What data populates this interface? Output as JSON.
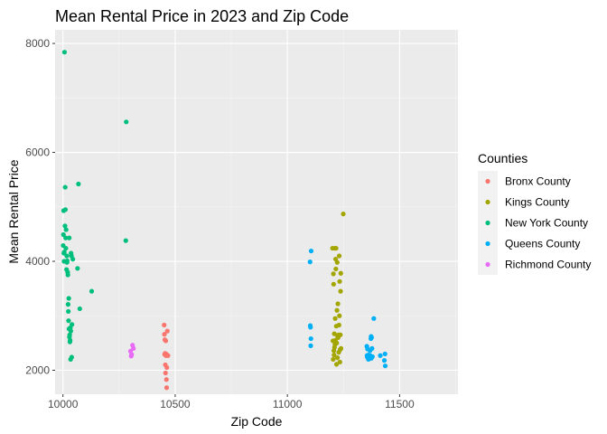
{
  "chart_data": {
    "type": "scatter",
    "title": "Mean Rental Price in 2023 and Zip Code",
    "xlabel": "Zip Code",
    "ylabel": "Mean Rental Price",
    "xlim": [
      9965,
      11760
    ],
    "ylim": [
      1560,
      8250
    ],
    "x_ticks": [
      10000,
      10500,
      11000,
      11500
    ],
    "y_ticks": [
      2000,
      4000,
      6000,
      8000
    ],
    "grid": true,
    "legend": {
      "title": "Counties",
      "position": "right"
    },
    "series": [
      {
        "name": "Bronx County",
        "color": "#F8766D",
        "points": [
          [
            10451,
            2830
          ],
          [
            10452,
            2660
          ],
          [
            10453,
            2290
          ],
          [
            10454,
            2560
          ],
          [
            10455,
            2310
          ],
          [
            10456,
            2100
          ],
          [
            10457,
            1950
          ],
          [
            10458,
            2540
          ],
          [
            10459,
            2270
          ],
          [
            10460,
            2300
          ],
          [
            10461,
            1830
          ],
          [
            10462,
            1680
          ],
          [
            10463,
            2050
          ],
          [
            10465,
            2720
          ],
          [
            10468,
            2270
          ]
        ]
      },
      {
        "name": "Kings County",
        "color": "#A3A500",
        "points": [
          [
            11201,
            4240
          ],
          [
            11203,
            2540
          ],
          [
            11204,
            2200
          ],
          [
            11205,
            3770
          ],
          [
            11206,
            3580
          ],
          [
            11207,
            2360
          ],
          [
            11208,
            2280
          ],
          [
            11209,
            2670
          ],
          [
            11210,
            2420
          ],
          [
            11211,
            4240
          ],
          [
            11212,
            2470
          ],
          [
            11213,
            2950
          ],
          [
            11214,
            2550
          ],
          [
            11215,
            4040
          ],
          [
            11216,
            3860
          ],
          [
            11217,
            4240
          ],
          [
            11218,
            2810
          ],
          [
            11219,
            2110
          ],
          [
            11220,
            2500
          ],
          [
            11221,
            3100
          ],
          [
            11222,
            3980
          ],
          [
            11223,
            2230
          ],
          [
            11224,
            2620
          ],
          [
            11225,
            3220
          ],
          [
            11226,
            2600
          ],
          [
            11228,
            2650
          ],
          [
            11229,
            2330
          ],
          [
            11230,
            2830
          ],
          [
            11231,
            4100
          ],
          [
            11232,
            3000
          ],
          [
            11233,
            3630
          ],
          [
            11234,
            2150
          ],
          [
            11235,
            2380
          ],
          [
            11236,
            2650
          ],
          [
            11237,
            3450
          ],
          [
            11238,
            3780
          ],
          [
            11239,
            2400
          ],
          [
            11249,
            4870
          ]
        ]
      },
      {
        "name": "New York County",
        "color": "#00BF7D",
        "points": [
          [
            10001,
            4290
          ],
          [
            10002,
            4490
          ],
          [
            10003,
            4930
          ],
          [
            10004,
            4150
          ],
          [
            10005,
            4000
          ],
          [
            10006,
            4170
          ],
          [
            10007,
            7840
          ],
          [
            10009,
            4650
          ],
          [
            10010,
            5360
          ],
          [
            10011,
            4950
          ],
          [
            10012,
            4430
          ],
          [
            10013,
            4240
          ],
          [
            10014,
            4580
          ],
          [
            10016,
            3850
          ],
          [
            10017,
            4100
          ],
          [
            10018,
            3980
          ],
          [
            10019,
            4010
          ],
          [
            10021,
            3800
          ],
          [
            10022,
            3750
          ],
          [
            10023,
            3210
          ],
          [
            10024,
            3080
          ],
          [
            10025,
            2910
          ],
          [
            10026,
            3320
          ],
          [
            10027,
            2760
          ],
          [
            10028,
            4430
          ],
          [
            10029,
            2610
          ],
          [
            10030,
            2650
          ],
          [
            10031,
            2520
          ],
          [
            10032,
            2550
          ],
          [
            10033,
            2780
          ],
          [
            10034,
            2200
          ],
          [
            10035,
            2720
          ],
          [
            10036,
            4150
          ],
          [
            10038,
            4100
          ],
          [
            10039,
            2240
          ],
          [
            10040,
            2840
          ],
          [
            10044,
            4040
          ],
          [
            10065,
            3870
          ],
          [
            10069,
            5420
          ],
          [
            10075,
            3130
          ],
          [
            10128,
            3450
          ],
          [
            10280,
            4380
          ],
          [
            10282,
            6560
          ]
        ]
      },
      {
        "name": "Queens County",
        "color": "#00B0F6",
        "points": [
          [
            11101,
            3990
          ],
          [
            11102,
            2820
          ],
          [
            11103,
            2790
          ],
          [
            11104,
            2450
          ],
          [
            11105,
            2580
          ],
          [
            11106,
            4190
          ],
          [
            11354,
            2440
          ],
          [
            11355,
            2270
          ],
          [
            11356,
            2240
          ],
          [
            11357,
            2390
          ],
          [
            11358,
            2260
          ],
          [
            11360,
            2280
          ],
          [
            11361,
            2200
          ],
          [
            11362,
            2240
          ],
          [
            11364,
            2270
          ],
          [
            11365,
            2210
          ],
          [
            11366,
            2230
          ],
          [
            11367,
            2220
          ],
          [
            11368,
            2360
          ],
          [
            11369,
            2270
          ],
          [
            11372,
            2580
          ],
          [
            11373,
            2620
          ],
          [
            11374,
            2220
          ],
          [
            11375,
            2600
          ],
          [
            11377,
            2400
          ],
          [
            11379,
            2250
          ],
          [
            11385,
            2950
          ],
          [
            11414,
            2270
          ],
          [
            11432,
            2180
          ],
          [
            11435,
            2300
          ],
          [
            11436,
            2080
          ]
        ]
      },
      {
        "name": "Richmond County",
        "color": "#E76BF3",
        "points": [
          [
            10301,
            2350
          ],
          [
            10304,
            2260
          ],
          [
            10306,
            2290
          ],
          [
            10310,
            2460
          ],
          [
            10314,
            2400
          ]
        ]
      }
    ]
  }
}
